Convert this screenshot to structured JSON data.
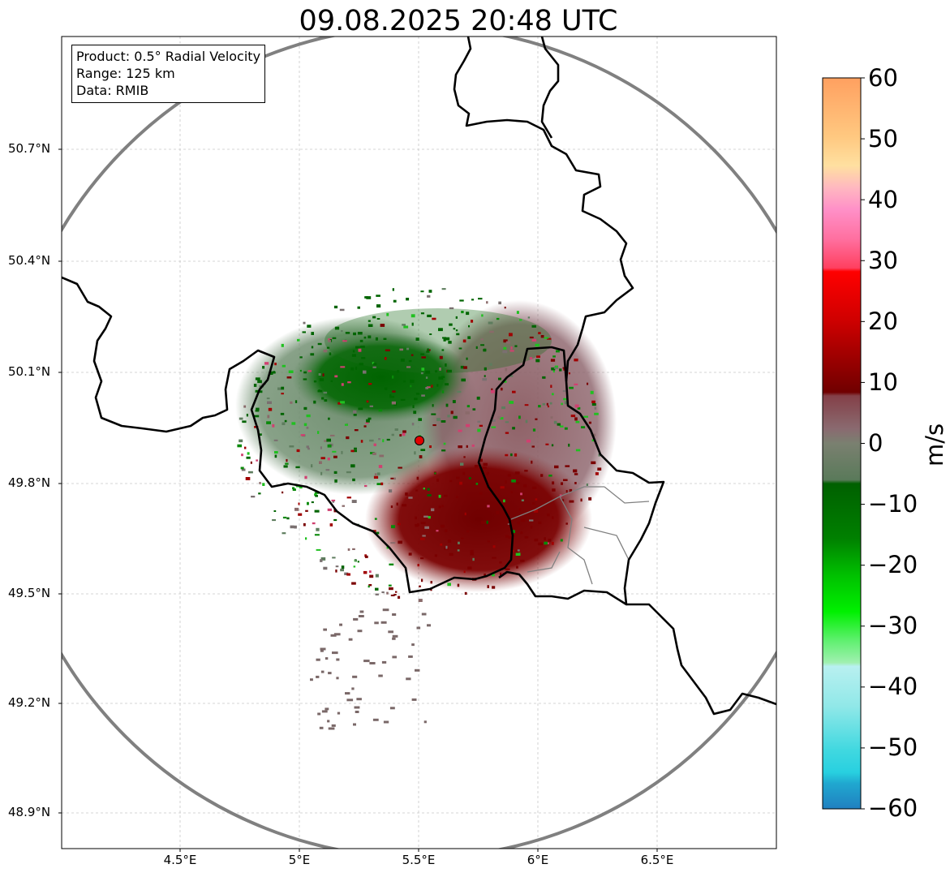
{
  "title": "09.08.2025 20:48 UTC",
  "info": {
    "product": "Product: 0.5° Radial Velocity",
    "range": "Range: 125 km",
    "source": "Data: RMIB"
  },
  "axes": {
    "x_ticks": [
      "4.5°E",
      "5°E",
      "5.5°E",
      "6°E",
      "6.5°E"
    ],
    "y_ticks": [
      "50.7°N",
      "50.4°N",
      "50.1°N",
      "49.8°N",
      "49.5°N",
      "49.2°N",
      "48.9°N"
    ]
  },
  "colorbar": {
    "label": "m/s",
    "ticks": [
      "60",
      "50",
      "40",
      "30",
      "20",
      "10",
      "0",
      "−10",
      "−20",
      "−30",
      "−40",
      "−50",
      "−60"
    ],
    "range": [
      -60,
      60
    ]
  },
  "colors": {
    "range_ring": "#808080",
    "border": "#000000",
    "radar_site": "#e00000",
    "inbound": "#006400",
    "outbound": "#7a0000",
    "near_zero_neg": "#5e7d5e",
    "near_zero_pos": "#8a5858"
  }
}
